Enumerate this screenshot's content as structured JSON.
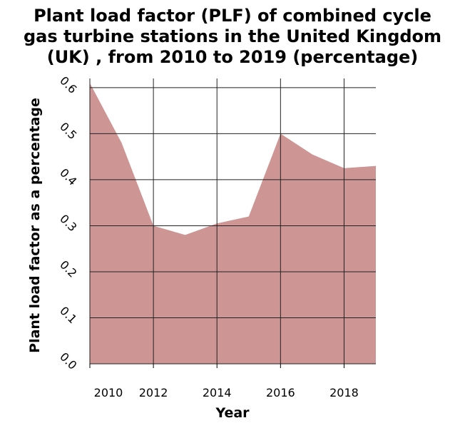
{
  "chart_data": {
    "type": "area",
    "title_lines": [
      "Plant load factor (PLF) of combined cycle",
      "gas turbine stations in the United Kingdom",
      "(UK) , from 2010 to 2019 (percentage)"
    ],
    "xlabel": "Year",
    "ylabel": "Plant load factor as a percentage",
    "x": [
      2010,
      2011,
      2012,
      2013,
      2014,
      2015,
      2016,
      2017,
      2018,
      2019
    ],
    "values": [
      0.61,
      0.48,
      0.3,
      0.28,
      0.305,
      0.32,
      0.5,
      0.455,
      0.425,
      0.43
    ],
    "xlim": [
      2010,
      2019
    ],
    "ylim": [
      0,
      0.62
    ],
    "x_ticks": [
      2010,
      2012,
      2014,
      2016,
      2018
    ],
    "x_tick_labels": [
      "2010",
      "2012",
      "2014",
      "2016",
      "2018"
    ],
    "y_ticks": [
      0,
      0.1,
      0.2,
      0.3,
      0.4,
      0.5,
      0.6
    ],
    "y_tick_labels": [
      "0.0",
      "0.1",
      "0.2",
      "0.3",
      "0.4",
      "0.5",
      "0.6"
    ],
    "grid": true,
    "fill_color": "#cd9594"
  }
}
